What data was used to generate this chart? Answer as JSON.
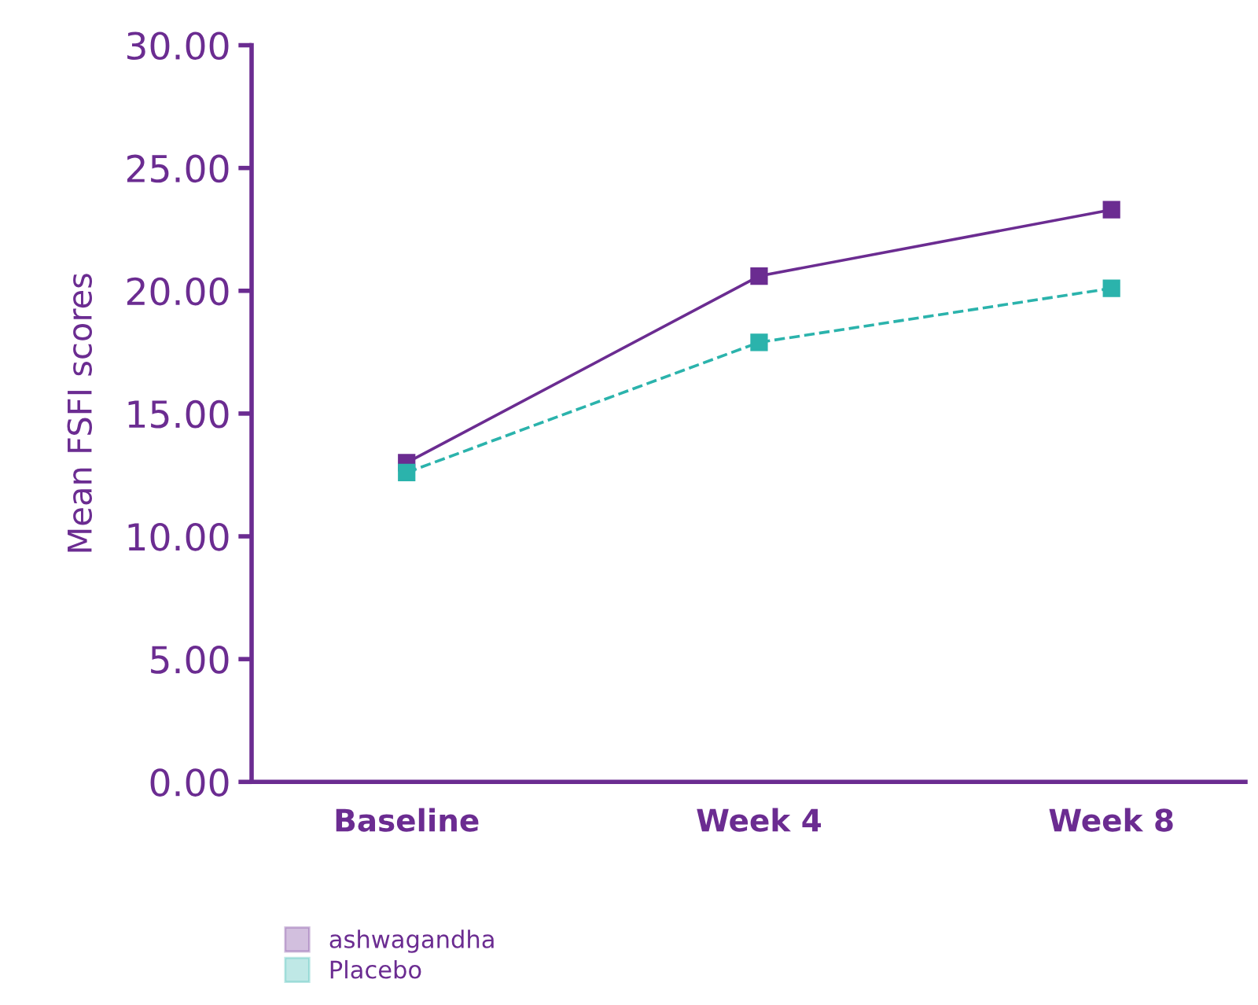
{
  "chart_data": {
    "type": "line",
    "ylabel": "Mean FSFI scores",
    "categories": [
      "Baseline",
      "Week 4",
      "Week 8"
    ],
    "series": [
      {
        "name": "ashwagandha",
        "color": "#6b2c91",
        "values": [
          13.0,
          20.6,
          23.3
        ],
        "line_style": "solid"
      },
      {
        "name": "Placebo",
        "color": "#2bb3ac",
        "values": [
          12.6,
          17.9,
          20.1
        ],
        "line_style": "dashed"
      }
    ],
    "ylim": [
      0,
      30
    ],
    "yticks": [
      {
        "value": 0,
        "label": "0.00"
      },
      {
        "value": 5,
        "label": "5.00"
      },
      {
        "value": 10,
        "label": "10.00"
      },
      {
        "value": 15,
        "label": "15.00"
      },
      {
        "value": 20,
        "label": "20.00"
      },
      {
        "value": 25,
        "label": "25.00"
      },
      {
        "value": 30,
        "label": "30.00"
      }
    ],
    "marker": "square",
    "grid": false,
    "legend": "bottom left"
  }
}
